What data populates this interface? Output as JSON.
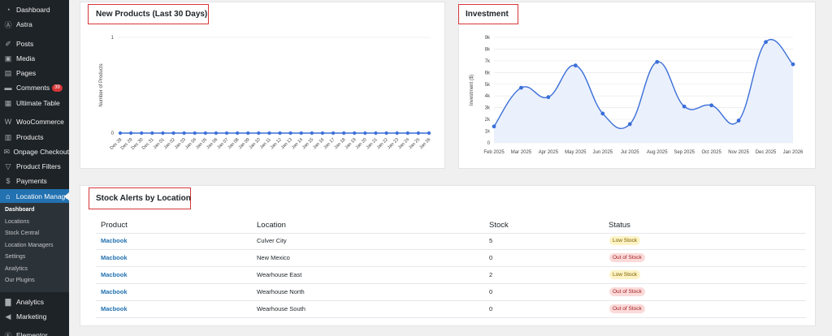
{
  "sidebar": {
    "items": [
      {
        "label": "Dashboard",
        "icon": "dashboard-icon",
        "glyph": "◔"
      },
      {
        "label": "Astra",
        "icon": "astra-icon",
        "glyph": "Ⓐ"
      },
      {
        "label": "Posts",
        "icon": "pin-icon",
        "glyph": "✐"
      },
      {
        "label": "Media",
        "icon": "media-icon",
        "glyph": "▣"
      },
      {
        "label": "Pages",
        "icon": "pages-icon",
        "glyph": "▤"
      },
      {
        "label": "Comments",
        "icon": "comments-icon",
        "glyph": "▬",
        "badge": "39"
      },
      {
        "label": "Ultimate Table",
        "icon": "table-icon",
        "glyph": "▦"
      },
      {
        "label": "WooCommerce",
        "icon": "woocommerce-icon",
        "glyph": "W"
      },
      {
        "label": "Products",
        "icon": "products-icon",
        "glyph": "▥"
      },
      {
        "label": "Onpage Checkout",
        "icon": "cart-icon",
        "glyph": "✉"
      },
      {
        "label": "Product Filters",
        "icon": "filter-icon",
        "glyph": "▽"
      },
      {
        "label": "Payments",
        "icon": "payments-icon",
        "glyph": "$"
      },
      {
        "label": "Location Manage",
        "icon": "location-icon",
        "glyph": "⌂"
      },
      {
        "label": "Analytics",
        "icon": "analytics-icon",
        "glyph": "▇"
      },
      {
        "label": "Marketing",
        "icon": "megaphone-icon",
        "glyph": "◀"
      },
      {
        "label": "Elementor",
        "icon": "elementor-icon",
        "glyph": "Ⓔ"
      }
    ],
    "submenu": [
      "Dashboard",
      "Locations",
      "Stock Central",
      "Location Managers",
      "Settings",
      "Analytics",
      "Our Plugins"
    ]
  },
  "products_card": {
    "title": "New Products (Last 30 Days)"
  },
  "investment_card": {
    "title": "Investment"
  },
  "alerts": {
    "title": "Stock Alerts by Location",
    "columns": [
      "Product",
      "Location",
      "Stock",
      "Status"
    ],
    "rows": [
      {
        "product": "Macbook",
        "location": "Culver City",
        "stock": "5",
        "status": "Low Stock",
        "status_type": "low"
      },
      {
        "product": "Macbook",
        "location": "New Mexico",
        "stock": "0",
        "status": "Out of Stock",
        "status_type": "out"
      },
      {
        "product": "Macbook",
        "location": "Wearhouse East",
        "stock": "2",
        "status": "Low Stock",
        "status_type": "low"
      },
      {
        "product": "Macbook",
        "location": "Wearhouse North",
        "stock": "0",
        "status": "Out of Stock",
        "status_type": "out"
      },
      {
        "product": "Macbook",
        "location": "Wearhouse South",
        "stock": "0",
        "status": "Out of Stock",
        "status_type": "out"
      }
    ]
  },
  "colors": {
    "accent": "#2271b1",
    "chart_line": "#3b6fd9",
    "chart_fill": "#eaf0fc",
    "highlight_box": "#d63638",
    "sidebar_bg": "#1d2327"
  },
  "chart_data": [
    {
      "type": "line",
      "ylabel": "Number of Products",
      "ylim": [
        0,
        1
      ],
      "yticks": [
        "0",
        "1"
      ],
      "x": [
        "Dec 28",
        "Dec 29",
        "Dec 30",
        "Dec 31",
        "Jan 01",
        "Jan 02",
        "Jan 03",
        "Jan 04",
        "Jan 05",
        "Jan 06",
        "Jan 07",
        "Jan 08",
        "Jan 09",
        "Jan 10",
        "Jan 11",
        "Jan 12",
        "Jan 13",
        "Jan 14",
        "Jan 15",
        "Jan 16",
        "Jan 17",
        "Jan 18",
        "Jan 19",
        "Jan 20",
        "Jan 21",
        "Jan 22",
        "Jan 23",
        "Jan 24",
        "Jan 25",
        "Jan 26"
      ],
      "values": [
        0,
        0,
        0,
        0,
        0,
        0,
        0,
        0,
        0,
        0,
        0,
        0,
        0,
        0,
        0,
        0,
        0,
        0,
        0,
        0,
        0,
        0,
        0,
        0,
        0,
        0,
        0,
        0,
        0,
        0
      ],
      "grid": true
    },
    {
      "type": "area",
      "ylabel": "Investment ($)",
      "ylim": [
        0,
        9000
      ],
      "yticks": [
        "0",
        "1k",
        "2k",
        "3k",
        "4k",
        "5k",
        "6k",
        "7k",
        "8k",
        "9k"
      ],
      "x": [
        "Feb 2025",
        "Mar 2025",
        "Apr 2025",
        "May 2025",
        "Jun 2025",
        "Jul 2025",
        "Aug 2025",
        "Sep 2025",
        "Oct 2025",
        "Nov 2025",
        "Dec 2025",
        "Jan 2026"
      ],
      "values": [
        1400,
        4700,
        3900,
        6600,
        2500,
        1600,
        6900,
        3100,
        3200,
        1900,
        8600,
        6700
      ],
      "grid": true
    }
  ]
}
